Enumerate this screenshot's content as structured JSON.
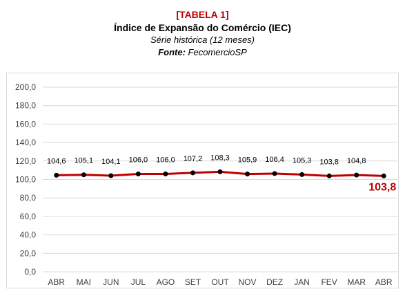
{
  "header": {
    "tag": "[TABELA 1]",
    "title": "Índice de Expansão do Comércio (IEC)",
    "subtitle": "Série histórica (12 meses)",
    "source_label": "Fonte:",
    "source_value": "FecomercioSP"
  },
  "chart_data": {
    "type": "line",
    "categories": [
      "ABR",
      "MAI",
      "JUN",
      "JUL",
      "AGO",
      "SET",
      "OUT",
      "NOV",
      "DEZ",
      "JAN",
      "FEV",
      "MAR",
      "ABR"
    ],
    "values": [
      104.6,
      105.1,
      104.1,
      106.0,
      106.0,
      107.2,
      108.3,
      105.9,
      106.4,
      105.3,
      103.8,
      104.8,
      103.8
    ],
    "value_labels": [
      "104,6",
      "105,1",
      "104,1",
      "106,0",
      "106,0",
      "107,2",
      "108,3",
      "105,9",
      "106,4",
      "105,3",
      "103,8",
      "104,8",
      "103,8"
    ],
    "yticks": [
      "0,0",
      "20,0",
      "40,0",
      "60,0",
      "80,0",
      "100,0",
      "120,0",
      "140,0",
      "160,0",
      "180,0",
      "200,0"
    ],
    "ylim": [
      0,
      200
    ],
    "grid": true,
    "line_color": "#c00000",
    "marker_color": "#000000",
    "highlight_color": "#c00000"
  }
}
